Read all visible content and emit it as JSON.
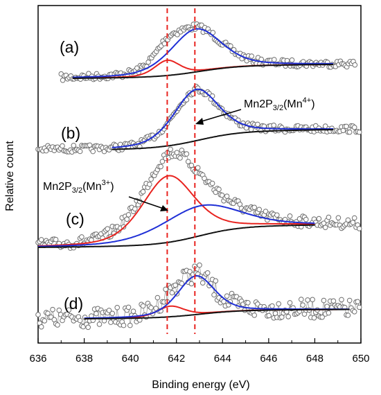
{
  "chart_data": {
    "type": "line",
    "title": "",
    "xlabel": "Binding energy (eV)",
    "ylabel": "Relative count",
    "xlim": [
      636,
      650
    ],
    "x_ticks": [
      "636",
      "638",
      "640",
      "642",
      "644",
      "646",
      "648",
      "650"
    ],
    "y_ticks": "none",
    "grid": false,
    "legend": "none",
    "reference_lines": [
      {
        "x": 641.6,
        "style": "dashed",
        "color": "#e8231f"
      },
      {
        "x": 642.8,
        "style": "dashed",
        "color": "#e8231f"
      }
    ],
    "panels": [
      {
        "label": "(a)",
        "scale": 1.0,
        "series": [
          {
            "component": "Mn 3+",
            "color": "#e8231f",
            "center": 641.6,
            "fwhm": 1.3,
            "height": 0.22,
            "x_range": [
              637.5,
              648.8
            ]
          },
          {
            "component": "Mn 4+",
            "color": "#1f2fd6",
            "center": 642.85,
            "fwhm": 2.6,
            "height": 0.62,
            "x_range": [
              637.5,
              648.8
            ]
          },
          {
            "component": "background",
            "color": "#111111",
            "x_range": [
              637.5,
              648.8
            ],
            "y_start": 0.0,
            "y_end": 0.2
          }
        ]
      },
      {
        "label": "(b)",
        "scale": 1.0,
        "series": [
          {
            "component": "Mn 4+",
            "color": "#1f2fd6",
            "center": 642.85,
            "fwhm": 2.3,
            "height": 0.74,
            "x_range": [
              639.2,
              648.8
            ]
          },
          {
            "component": "background",
            "color": "#111111",
            "x_range": [
              639.2,
              648.8
            ],
            "y_start": 0.0,
            "y_end": 0.29
          }
        ]
      },
      {
        "label": "(c)",
        "scale": 1.0,
        "series": [
          {
            "component": "Mn 3+",
            "color": "#e8231f",
            "center": 641.65,
            "fwhm": 2.7,
            "height": 0.8,
            "x_range": [
              636.0,
              648.0
            ]
          },
          {
            "component": "Mn 4+",
            "color": "#1f2fd6",
            "center": 642.95,
            "fwhm": 4.0,
            "height": 0.36,
            "x_range": [
              636.0,
              648.0
            ]
          },
          {
            "component": "background",
            "color": "#111111",
            "x_range": [
              636.0,
              648.0
            ],
            "y_start": 0.0,
            "y_end": 0.27
          }
        ]
      },
      {
        "label": "(d)",
        "scale": 1.0,
        "series": [
          {
            "component": "Mn 3+",
            "color": "#e8231f",
            "center": 641.75,
            "fwhm": 1.4,
            "height": 0.17,
            "x_range": [
              638.0,
              649.5
            ]
          },
          {
            "component": "Mn 4+",
            "color": "#1f2fd6",
            "center": 642.85,
            "fwhm": 1.9,
            "height": 0.62,
            "x_range": [
              638.0,
              649.5
            ]
          },
          {
            "component": "background",
            "color": "#111111",
            "x_range": [
              638.0,
              649.5
            ],
            "y_start": 0.0,
            "y_end": 0.15
          }
        ]
      }
    ],
    "annotations": [
      {
        "text_main": "Mn2P",
        "text_sub": "3/2",
        "text_rest": "(Mn",
        "text_sup": "4+",
        "text_end": ")",
        "panel": "(b)",
        "points_to_x": 642.8
      },
      {
        "text_main": "Mn2P",
        "text_sub": "3/2",
        "text_rest": "(Mn",
        "text_sup": "3+",
        "text_end": ")",
        "panel": "(c)",
        "points_to_x": 641.6
      }
    ]
  }
}
